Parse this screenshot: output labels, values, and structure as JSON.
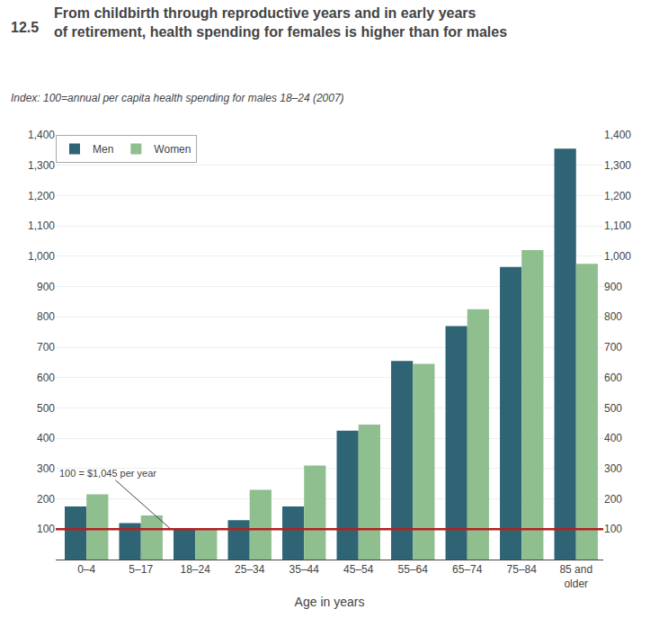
{
  "chart_data": {
    "type": "bar",
    "title_number": "12.5",
    "title": "From childbirth through reproductive years and in early years\nof retirement, health spending for females is higher than for males",
    "subtitle": "Index: 100=annual per capita health spending for males 18–24 (2007)",
    "xlabel": "Age in years",
    "categories": [
      "0–4",
      "5–17",
      "18–24",
      "25–34",
      "35–44",
      "45–54",
      "55–64",
      "65–74",
      "75–84",
      "85 and\nolder"
    ],
    "series": [
      {
        "name": "Men",
        "color": "#2e6474",
        "values": [
          175,
          120,
          100,
          130,
          175,
          425,
          655,
          770,
          965,
          1355
        ]
      },
      {
        "name": "Women",
        "color": "#8fbe8f",
        "values": [
          215,
          145,
          100,
          230,
          310,
          445,
          645,
          825,
          1020,
          975
        ]
      }
    ],
    "reference_line": {
      "y": 100,
      "color": "#b22222"
    },
    "annotations": [
      {
        "text": "100 = $1,045 per year"
      }
    ],
    "ylim": [
      0,
      1400
    ],
    "yticks": [
      100,
      200,
      300,
      400,
      500,
      600,
      700,
      800,
      900,
      {
        "value": 1000,
        "label": "1,000"
      },
      {
        "value": 1100,
        "label": "1,100"
      },
      {
        "value": 1200,
        "label": "1,200"
      },
      {
        "value": 1300,
        "label": "1,300"
      },
      {
        "value": 1400,
        "label": "1,400"
      }
    ],
    "y2lim": [
      0,
      1400
    ],
    "y2ticks": [
      100,
      200,
      300,
      400,
      500,
      600,
      700,
      800,
      900,
      {
        "value": 1000,
        "label": "1,000"
      },
      {
        "value": 1100,
        "label": "1,100"
      },
      {
        "value": 1200,
        "label": "1,200"
      },
      {
        "value": 1300,
        "label": "1,300"
      },
      {
        "value": 1400,
        "label": "1,400"
      }
    ],
    "grid": true,
    "legend": "upper left"
  }
}
